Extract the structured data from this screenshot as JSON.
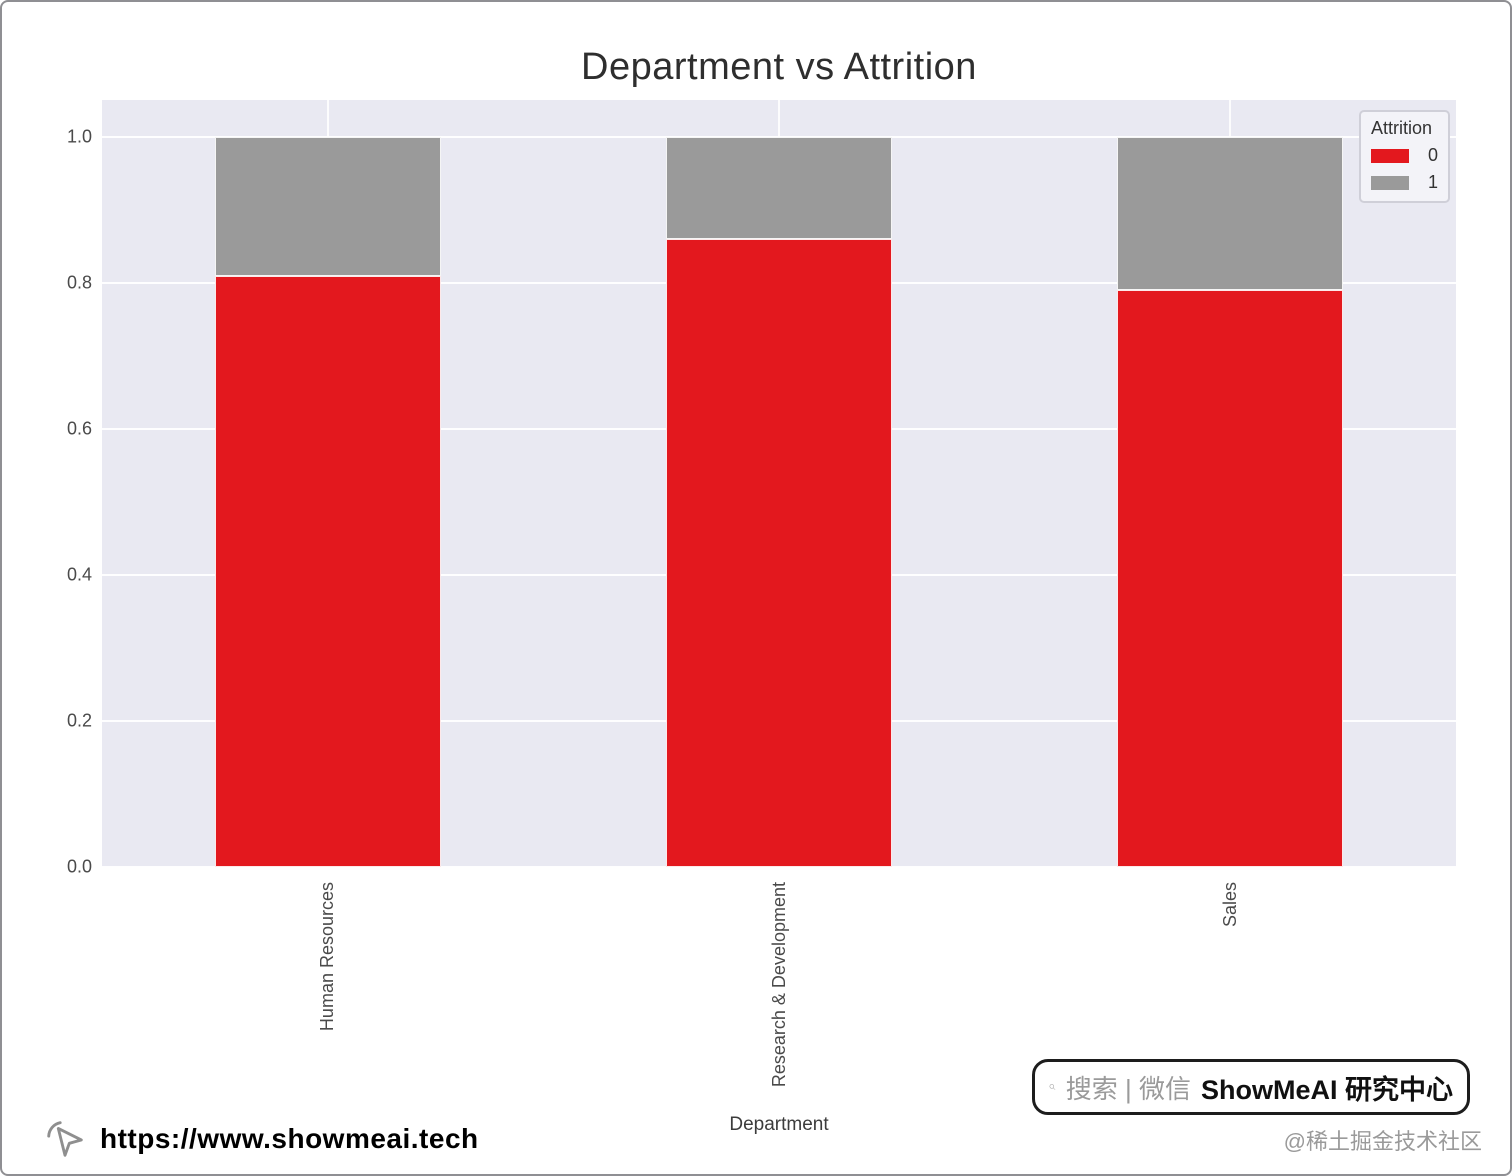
{
  "chart_data": {
    "type": "bar",
    "stacked": true,
    "title": "Department vs Attrition",
    "xlabel": "Department",
    "ylabel": "",
    "categories": [
      "Human Resources",
      "Research & Development",
      "Sales"
    ],
    "series": [
      {
        "name": "0",
        "color": "#e3181e",
        "values": [
          0.81,
          0.86,
          0.79
        ]
      },
      {
        "name": "1",
        "color": "#9a9a9a",
        "values": [
          0.19,
          0.14,
          0.21
        ]
      }
    ],
    "legend": {
      "title": "Attrition",
      "position": "upper right"
    },
    "ylim": [
      0,
      1.05
    ],
    "yticks": [
      "0.0",
      "0.2",
      "0.4",
      "0.6",
      "0.8",
      "1.0"
    ],
    "grid": true,
    "plot_bg": "#e9e9f2"
  },
  "watermarks": {
    "url": "https://www.showmeai.tech",
    "search_prefix": "搜索 | 微信",
    "search_brand": "ShowMeAI 研究中心",
    "credit": "@稀土掘金技术社区"
  }
}
